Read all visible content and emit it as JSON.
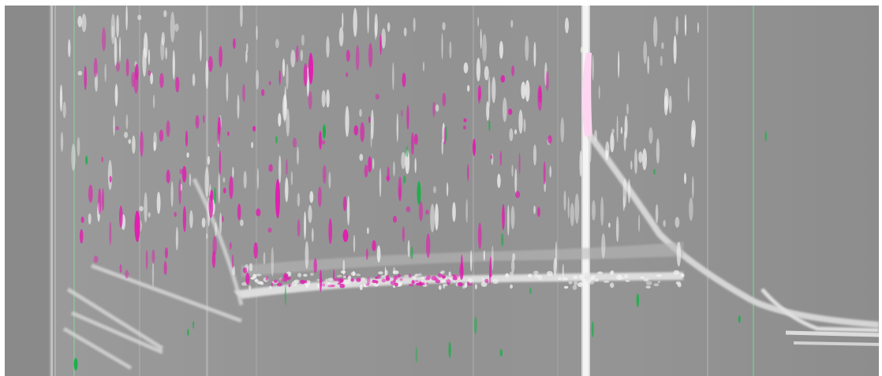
{
  "image": {
    "subject": "composite-overlay-gc-gc-chromatogram",
    "colors": {
      "background": "#8f8f8f",
      "signal_common": "#f2f2f2",
      "signal_magenta": "#e020b0",
      "signal_green": "#1fae4a",
      "highlight_pink": "#ffd6f2"
    }
  }
}
